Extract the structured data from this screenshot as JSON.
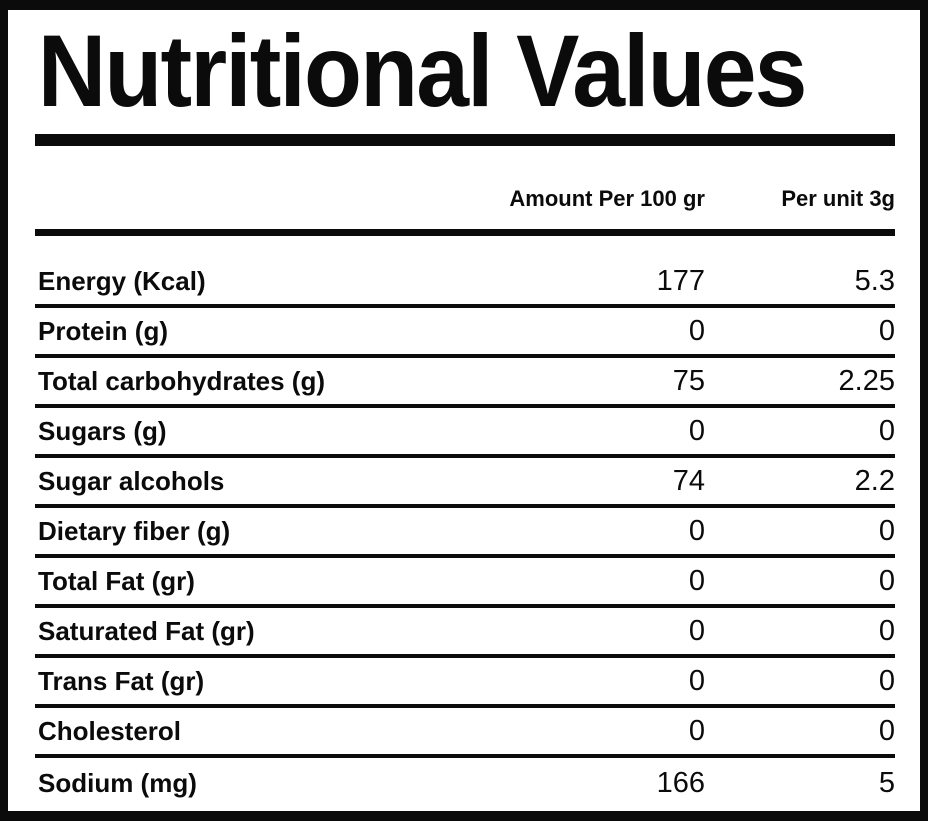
{
  "label": {
    "title": "Nutritional Values"
  },
  "table": {
    "columns": [
      "Amount Per 100 gr",
      "Per unit 3g"
    ],
    "rows": [
      {
        "label": "Energy (Kcal)",
        "per100": "177",
        "perUnit": "5.3"
      },
      {
        "label": "Protein (g)",
        "per100": "0",
        "perUnit": "0"
      },
      {
        "label": "Total carbohydrates (g)",
        "per100": "75",
        "perUnit": "2.25"
      },
      {
        "label": "Sugars (g)",
        "per100": "0",
        "perUnit": "0"
      },
      {
        "label": "Sugar alcohols",
        "per100": "74",
        "perUnit": "2.2"
      },
      {
        "label": "Dietary fiber (g)",
        "per100": "0",
        "perUnit": "0"
      },
      {
        "label": "Total Fat (gr)",
        "per100": "0",
        "perUnit": "0"
      },
      {
        "label": "Saturated Fat (gr)",
        "per100": "0",
        "perUnit": "0"
      },
      {
        "label": "Trans Fat (gr)",
        "per100": "0",
        "perUnit": "0"
      },
      {
        "label": "Cholesterol",
        "per100": "0",
        "perUnit": "0"
      },
      {
        "label": "Sodium (mg)",
        "per100": "166",
        "perUnit": "5"
      }
    ]
  },
  "colors": {
    "ink": "#0b0b0b",
    "background": "#ffffff"
  }
}
